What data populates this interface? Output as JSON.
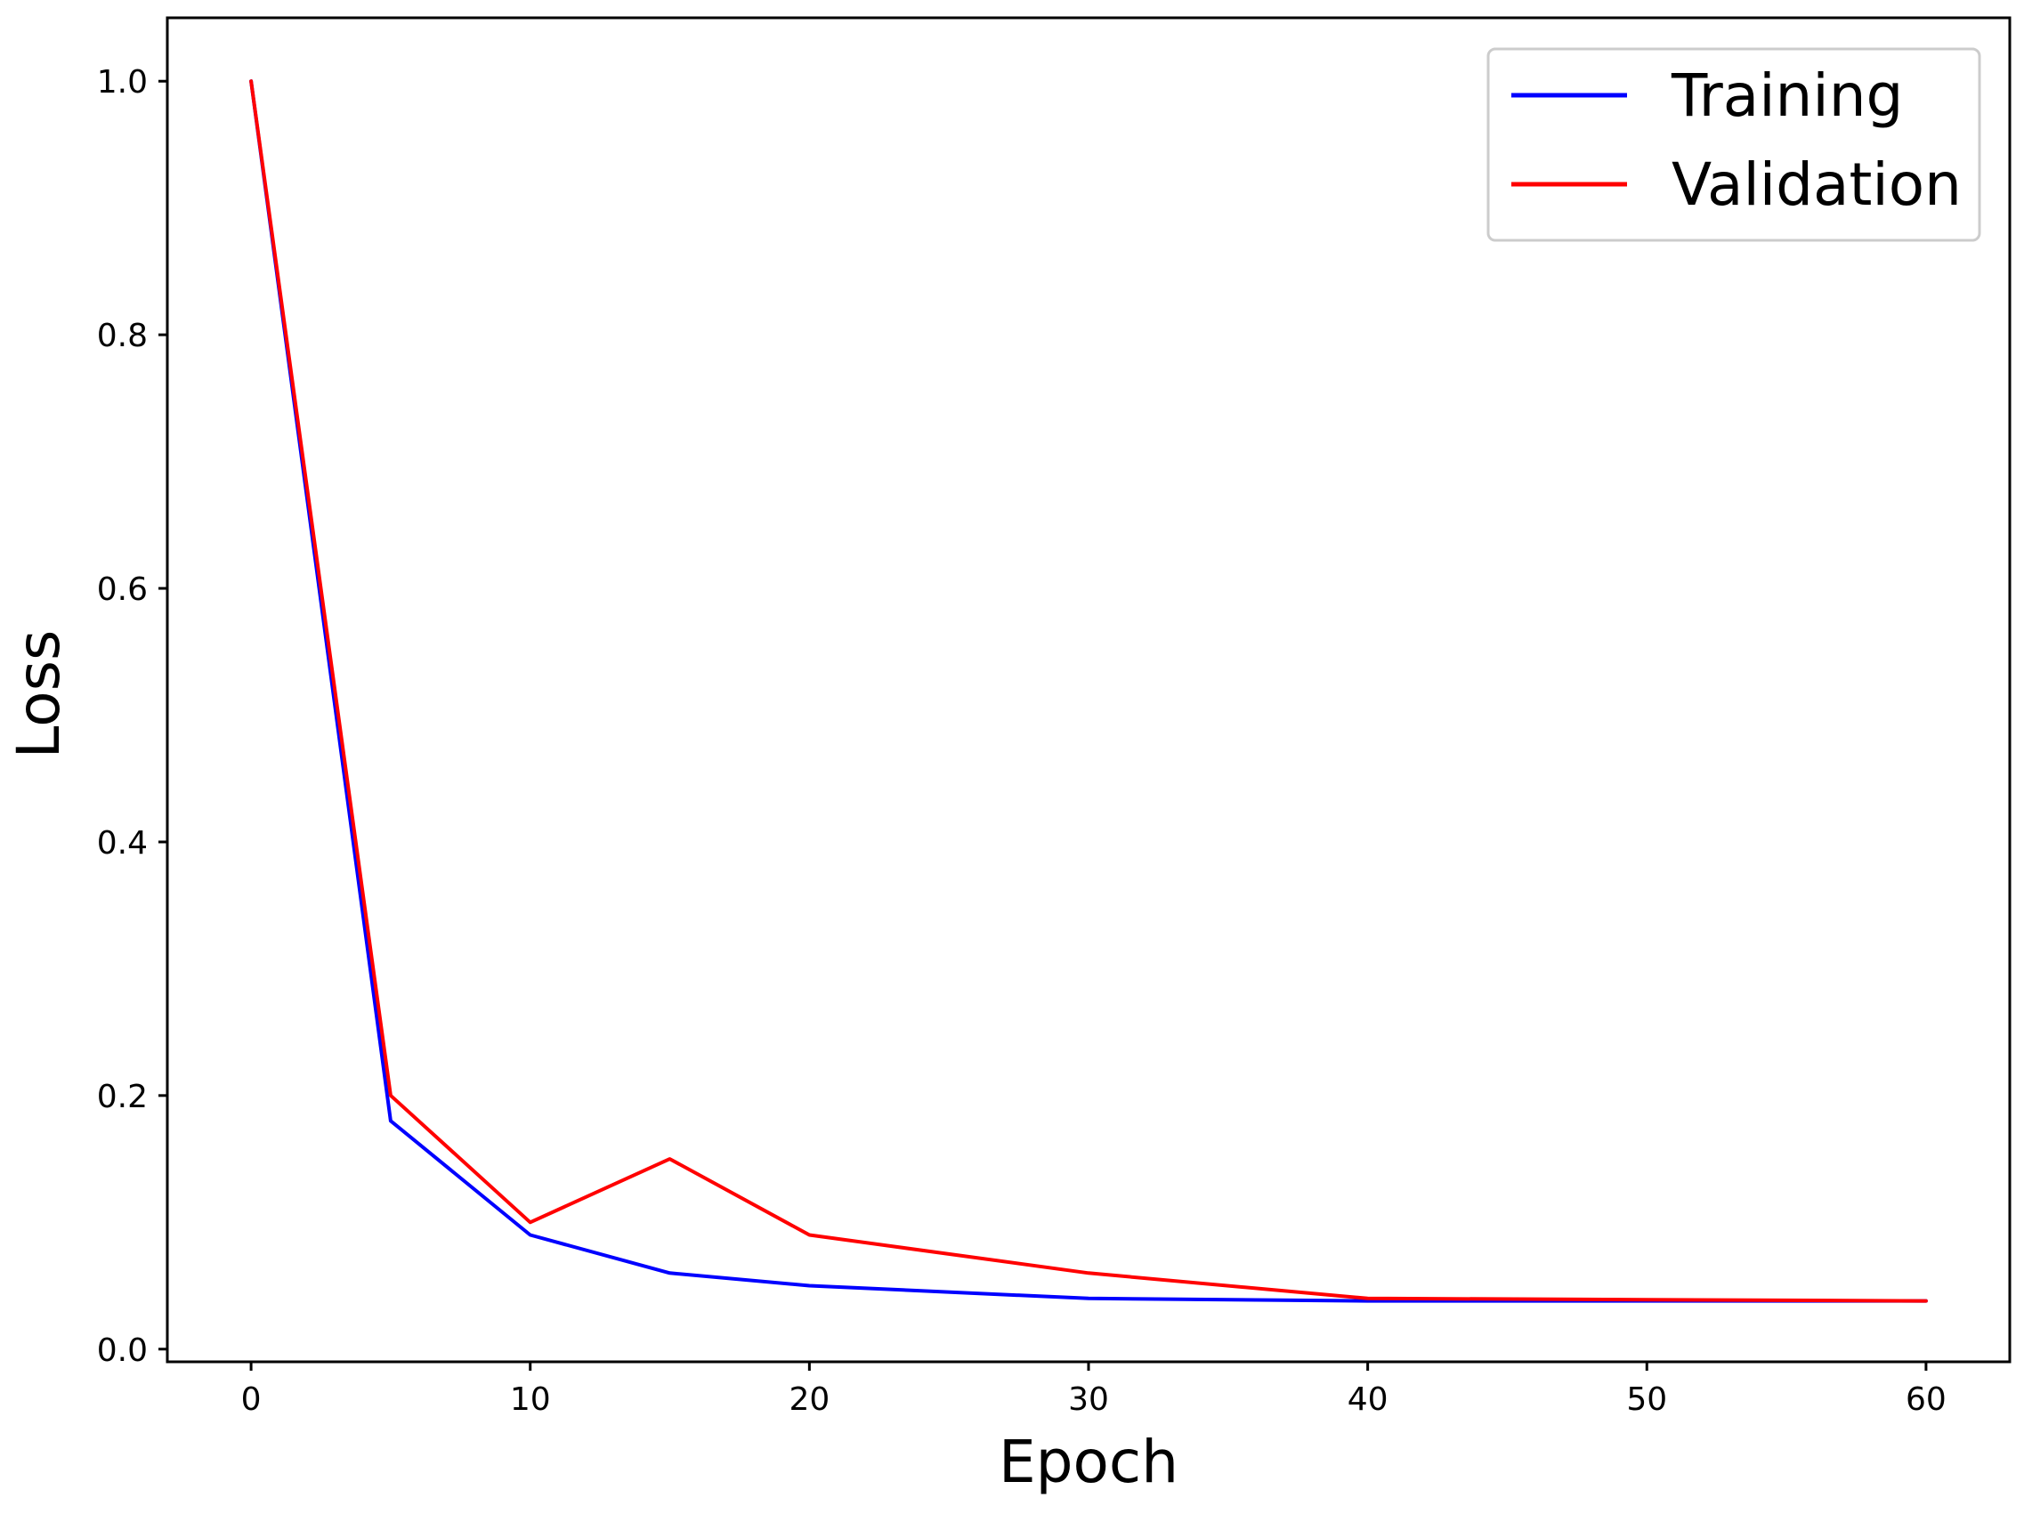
{
  "chart_data": {
    "type": "line",
    "title": "",
    "xlabel": "Epoch",
    "ylabel": "Loss",
    "xlim": [
      -3,
      63
    ],
    "ylim": [
      -0.01,
      1.05
    ],
    "xticks": [
      0,
      10,
      20,
      30,
      40,
      50,
      60
    ],
    "xtick_labels": [
      "0",
      "10",
      "20",
      "30",
      "40",
      "50",
      "60"
    ],
    "yticks": [
      0.0,
      0.2,
      0.4,
      0.6,
      0.8,
      1.0
    ],
    "ytick_labels": [
      "0.0",
      "0.2",
      "0.4",
      "0.6",
      "0.8",
      "1.0"
    ],
    "grid": false,
    "legend_position": "top-right",
    "series": [
      {
        "name": "Training",
        "color": "#0000ff",
        "x": [
          0,
          5,
          10,
          15,
          20,
          30,
          40,
          50,
          60
        ],
        "y": [
          1.0,
          0.18,
          0.09,
          0.06,
          0.05,
          0.04,
          0.038,
          0.038,
          0.038
        ]
      },
      {
        "name": "Validation",
        "color": "#ff0000",
        "x": [
          0,
          5,
          10,
          15,
          20,
          30,
          40,
          50,
          60
        ],
        "y": [
          1.0,
          0.2,
          0.1,
          0.15,
          0.09,
          0.06,
          0.04,
          0.039,
          0.038
        ]
      }
    ]
  }
}
